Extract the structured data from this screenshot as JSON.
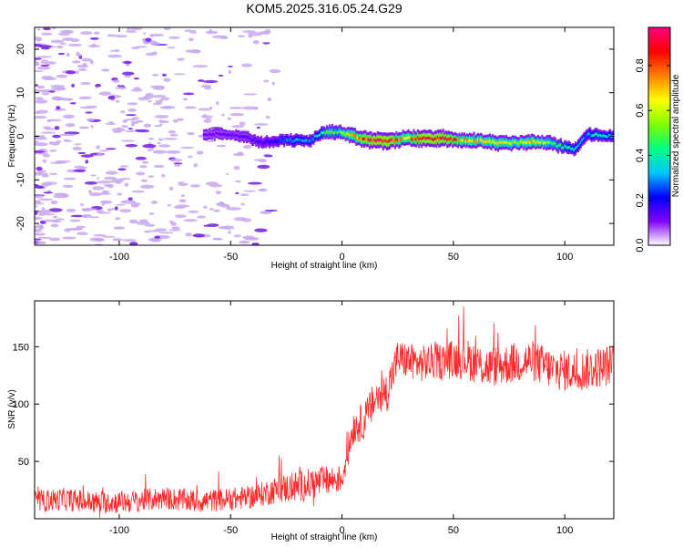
{
  "figure": {
    "title": "KOM5.2025.316.05.24.G29"
  },
  "colors": {
    "snr_line": "#ff2a2a",
    "spectrum_noise": "#c8a8f0",
    "spectrum_noise_dark": "#7a28e6"
  },
  "chart_data": [
    {
      "type": "heatmap",
      "title": "KOM5.2025.316.05.24.G29",
      "xlabel": "Height of straight line (km)",
      "ylabel": "Frequency (Hz)",
      "xlim": [
        -138,
        122
      ],
      "ylim": [
        -25,
        25
      ],
      "xticks": [
        -100,
        -50,
        0,
        50,
        100
      ],
      "xtick_labels": [
        "-100",
        "-50",
        "0",
        "50",
        "100"
      ],
      "yticks": [
        -20,
        -10,
        0,
        10,
        20
      ],
      "ytick_labels": [
        "-20",
        "-10",
        "0",
        "10",
        "20"
      ],
      "colorbar": {
        "label": "Normalized spectral amplitude",
        "range": [
          0,
          0.97
        ],
        "ticks": [
          0.0,
          0.2,
          0.4,
          0.6,
          0.8
        ],
        "tick_labels": [
          "0.0",
          "0.2",
          "0.4",
          "0.6",
          "0.8"
        ],
        "colors": [
          "#ffffff",
          "#8000ff",
          "#0000ff",
          "#00c8ff",
          "#00ff80",
          "#80ff00",
          "#ffff00",
          "#ff8000",
          "#ff0000",
          "#ff0080"
        ]
      },
      "ridge": [
        {
          "x": -62,
          "y": 0.5,
          "amp": 0.12
        },
        {
          "x": -52,
          "y": 0.5,
          "amp": 0.14
        },
        {
          "x": -44,
          "y": 0.0,
          "amp": 0.15
        },
        {
          "x": -36,
          "y": -1.5,
          "amp": 0.18
        },
        {
          "x": -30,
          "y": -1.0,
          "amp": 0.2
        },
        {
          "x": -25,
          "y": -0.8,
          "amp": 0.3
        },
        {
          "x": -20,
          "y": -1.0,
          "amp": 0.35
        },
        {
          "x": -14,
          "y": -1.0,
          "amp": 0.3
        },
        {
          "x": -10,
          "y": 0.5,
          "amp": 0.4
        },
        {
          "x": -6,
          "y": 1.0,
          "amp": 0.55
        },
        {
          "x": -2,
          "y": 1.0,
          "amp": 0.5
        },
        {
          "x": 2,
          "y": 0.5,
          "amp": 0.65
        },
        {
          "x": 8,
          "y": -0.5,
          "amp": 0.85
        },
        {
          "x": 15,
          "y": -1.0,
          "amp": 0.97
        },
        {
          "x": 22,
          "y": -1.0,
          "amp": 0.95
        },
        {
          "x": 28,
          "y": -0.5,
          "amp": 0.7
        },
        {
          "x": 35,
          "y": -0.5,
          "amp": 0.95
        },
        {
          "x": 45,
          "y": -0.5,
          "amp": 0.95
        },
        {
          "x": 55,
          "y": -1.0,
          "amp": 0.75
        },
        {
          "x": 62,
          "y": -1.0,
          "amp": 0.7
        },
        {
          "x": 70,
          "y": -1.5,
          "amp": 0.7
        },
        {
          "x": 78,
          "y": -1.5,
          "amp": 0.6
        },
        {
          "x": 86,
          "y": -1.2,
          "amp": 0.75
        },
        {
          "x": 93,
          "y": -1.5,
          "amp": 0.55
        },
        {
          "x": 100,
          "y": -2.5,
          "amp": 0.45
        },
        {
          "x": 105,
          "y": -3.0,
          "amp": 0.4
        },
        {
          "x": 110,
          "y": 0.5,
          "amp": 0.3
        },
        {
          "x": 115,
          "y": 0.2,
          "amp": 0.45
        },
        {
          "x": 122,
          "y": 0.0,
          "amp": 0.35
        }
      ],
      "noise_region_x": [
        -138,
        -30
      ],
      "noise_amplitude": 0.1
    },
    {
      "type": "line",
      "xlabel": "Height of straight line (km)",
      "ylabel": "SNR (v/v)",
      "xlim": [
        -138,
        122
      ],
      "ylim": [
        0,
        190
      ],
      "xticks": [
        -100,
        -50,
        0,
        50,
        100
      ],
      "xtick_labels": [
        "-100",
        "-50",
        "0",
        "50",
        "100"
      ],
      "yticks": [
        50,
        100,
        150
      ],
      "ytick_labels": [
        "50",
        "100",
        "150"
      ],
      "series": [
        {
          "name": "SNR",
          "x": [
            -138,
            -125,
            -110,
            -95,
            -80,
            -65,
            -50,
            -40,
            -30,
            -20,
            -10,
            0,
            5,
            10,
            15,
            20,
            25,
            35,
            45,
            55,
            65,
            75,
            85,
            95,
            105,
            115,
            122
          ],
          "values": [
            15,
            17,
            14,
            15,
            18,
            15,
            17,
            19,
            25,
            28,
            32,
            35,
            80,
            85,
            105,
            110,
            140,
            135,
            138,
            140,
            132,
            135,
            138,
            130,
            128,
            132,
            135
          ],
          "noise_amplitude": [
            10,
            10,
            10,
            10,
            10,
            10,
            10,
            10,
            12,
            14,
            14,
            12,
            16,
            16,
            18,
            18,
            16,
            16,
            16,
            18,
            18,
            18,
            18,
            18,
            18,
            18,
            18
          ]
        }
      ]
    }
  ]
}
